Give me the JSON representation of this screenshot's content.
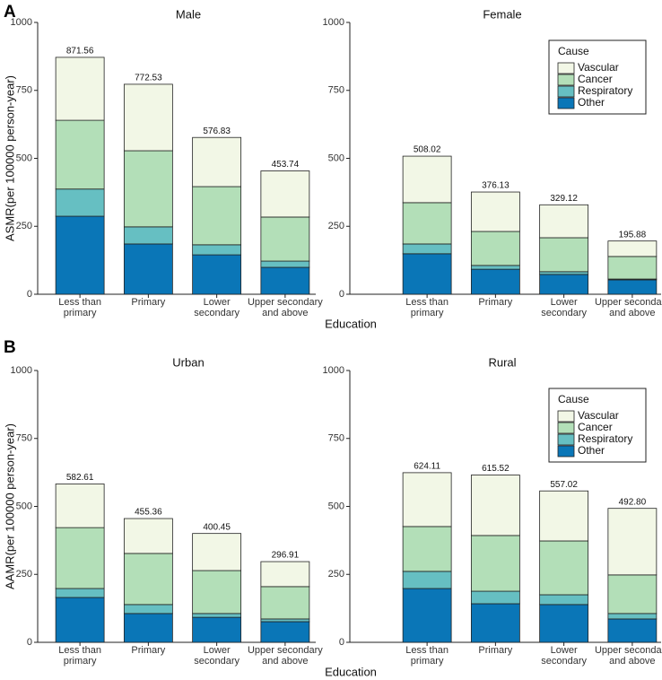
{
  "figure": {
    "panel_labels": [
      "A",
      "B"
    ],
    "xlabels": [
      "Education",
      "Education"
    ]
  },
  "chart_data": [
    {
      "type": "bar",
      "stacked": true,
      "title": "Male",
      "ylabel": "ASMR(per 100000 person-year)",
      "categories": [
        "Less than\nprimary",
        "Primary",
        "Lower\nsecondary",
        "Upper secondary\nand above"
      ],
      "series": [
        {
          "name": "Other",
          "color": "#0a76b7",
          "values": [
            287,
            185,
            145,
            99
          ]
        },
        {
          "name": "Respiratory",
          "color": "#66bfc2",
          "values": [
            100,
            63,
            37,
            23
          ]
        },
        {
          "name": "Cancer",
          "color": "#b3dfb8",
          "values": [
            253,
            280,
            214,
            162
          ]
        },
        {
          "name": "Vascular",
          "color": "#f2f7e6",
          "values": [
            231.56,
            244.53,
            180.83,
            169.74
          ]
        }
      ],
      "totals": [
        871.56,
        772.53,
        576.83,
        453.74
      ],
      "ylim": [
        0,
        1000
      ],
      "yticks": [
        0,
        250,
        500,
        750,
        1000
      ],
      "legend": false
    },
    {
      "type": "bar",
      "stacked": true,
      "title": "Female",
      "categories": [
        "Less than\nprimary",
        "Primary",
        "Lower\nsecondary",
        "Upper secondary\nand above"
      ],
      "series": [
        {
          "name": "Other",
          "color": "#0a76b7",
          "values": [
            149,
            92,
            73,
            53
          ]
        },
        {
          "name": "Respiratory",
          "color": "#66bfc2",
          "values": [
            36,
            14,
            10,
            3
          ]
        },
        {
          "name": "Cancer",
          "color": "#b3dfb8",
          "values": [
            152,
            125,
            125,
            83
          ]
        },
        {
          "name": "Vascular",
          "color": "#f2f7e6",
          "values": [
            171.02,
            145.13,
            121.12,
            56.88
          ]
        }
      ],
      "totals": [
        508.02,
        376.13,
        329.12,
        195.88
      ],
      "ylim": [
        0,
        1000
      ],
      "yticks": [
        0,
        250,
        500,
        750,
        1000
      ],
      "legend": true,
      "legend_title": "Cause",
      "legend_position": "top-right"
    },
    {
      "type": "bar",
      "stacked": true,
      "title": "Urban",
      "ylabel": "AAMR(per 100000 person-year)",
      "categories": [
        "Less than\nprimary",
        "Primary",
        "Lower\nsecondary",
        "Upper secondary\nand above"
      ],
      "series": [
        {
          "name": "Other",
          "color": "#0a76b7",
          "values": [
            165,
            106,
            92,
            76
          ]
        },
        {
          "name": "Respiratory",
          "color": "#66bfc2",
          "values": [
            33,
            33,
            14,
            10
          ]
        },
        {
          "name": "Cancer",
          "color": "#b3dfb8",
          "values": [
            224,
            188,
            158,
            119
          ]
        },
        {
          "name": "Vascular",
          "color": "#f2f7e6",
          "values": [
            160.61,
            128.36,
            136.45,
            91.91
          ]
        }
      ],
      "totals": [
        582.61,
        455.36,
        400.45,
        296.91
      ],
      "ylim": [
        0,
        1000
      ],
      "yticks": [
        0,
        250,
        500,
        750,
        1000
      ],
      "legend": false
    },
    {
      "type": "bar",
      "stacked": true,
      "title": "Rural",
      "categories": [
        "Less than\nprimary",
        "Primary",
        "Lower\nsecondary",
        "Upper secondary\nand above"
      ],
      "series": [
        {
          "name": "Other",
          "color": "#0a76b7",
          "values": [
            198,
            142,
            139,
            86
          ]
        },
        {
          "name": "Respiratory",
          "color": "#66bfc2",
          "values": [
            63,
            46,
            36,
            20
          ]
        },
        {
          "name": "Cancer",
          "color": "#b3dfb8",
          "values": [
            165,
            205,
            198,
            142
          ]
        },
        {
          "name": "Vascular",
          "color": "#f2f7e6",
          "values": [
            198.11,
            222.52,
            184.02,
            244.8
          ]
        }
      ],
      "totals": [
        624.11,
        615.52,
        557.02,
        492.8
      ],
      "total_labels": [
        "624.11",
        "615.52",
        "557.02",
        "492.80"
      ],
      "ylim": [
        0,
        1000
      ],
      "yticks": [
        0,
        250,
        500,
        750,
        1000
      ],
      "legend": true,
      "legend_title": "Cause",
      "legend_position": "top-right"
    }
  ]
}
